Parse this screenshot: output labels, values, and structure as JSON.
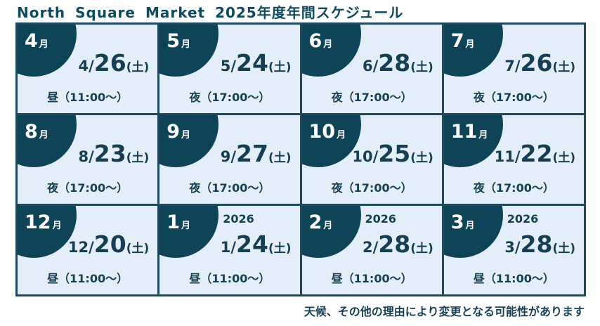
{
  "title": "North Square Market 2025年度年間スケジュール",
  "note": "天候、その他の理由により変更となる可能性があります",
  "month_suffix": "月",
  "day_label": "(土)",
  "events": [
    {
      "month": "4",
      "year": "",
      "prefix": "4/",
      "day": "26",
      "time": "昼（11:00〜）"
    },
    {
      "month": "5",
      "year": "",
      "prefix": "5/",
      "day": "24",
      "time": "夜（17:00〜）"
    },
    {
      "month": "6",
      "year": "",
      "prefix": "6/",
      "day": "28",
      "time": "夜（17:00〜）"
    },
    {
      "month": "7",
      "year": "",
      "prefix": "7/",
      "day": "26",
      "time": "夜（17:00〜）"
    },
    {
      "month": "8",
      "year": "",
      "prefix": "8/",
      "day": "23",
      "time": "夜（17:00〜）"
    },
    {
      "month": "9",
      "year": "",
      "prefix": "9/",
      "day": "27",
      "time": "夜（17:00〜）"
    },
    {
      "month": "10",
      "year": "",
      "prefix": "10/",
      "day": "25",
      "time": "夜（17:00〜）"
    },
    {
      "month": "11",
      "year": "",
      "prefix": "11/",
      "day": "22",
      "time": "夜（17:00〜）"
    },
    {
      "month": "12",
      "year": "",
      "prefix": "12/",
      "day": "20",
      "time": "昼（11:00〜）"
    },
    {
      "month": "1",
      "year": "2026",
      "prefix": "1/",
      "day": "24",
      "time": "昼（11:00〜）"
    },
    {
      "month": "2",
      "year": "2026",
      "prefix": "2/",
      "day": "28",
      "time": "昼（11:00〜）"
    },
    {
      "month": "3",
      "year": "2026",
      "prefix": "3/",
      "day": "28",
      "time": "昼（11:00〜）"
    }
  ],
  "colors": {
    "badge": "#0f4458",
    "cell_background": "#e4eef9",
    "grid_border": "#1d4a5c",
    "text": "#163f54"
  }
}
